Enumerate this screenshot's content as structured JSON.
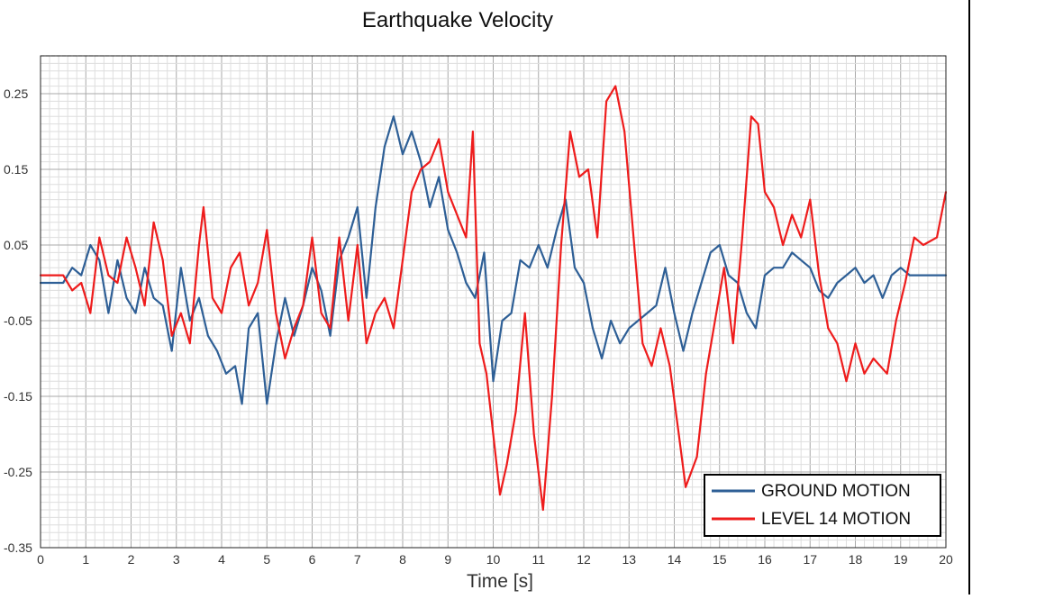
{
  "chart_data": {
    "type": "line",
    "title": "Earthquake Velocity",
    "xlabel": "Time [s]",
    "ylabel": "",
    "xlim": [
      0,
      20
    ],
    "ylim": [
      -0.35,
      0.3
    ],
    "x_ticks": [
      0,
      1,
      2,
      3,
      4,
      5,
      6,
      7,
      8,
      9,
      10,
      11,
      12,
      13,
      14,
      15,
      16,
      17,
      18,
      19,
      20
    ],
    "x_tick_labels": [
      "0",
      "1",
      "2",
      "3",
      "4",
      "5",
      "6",
      "7",
      "8",
      "9",
      "10",
      "11",
      "12",
      "13",
      "14",
      "15",
      "16",
      "17",
      "18",
      "19",
      "20"
    ],
    "y_ticks": [
      0.25,
      0.15,
      0.05,
      -0.05,
      -0.15,
      -0.25,
      -0.35
    ],
    "y_tick_labels": [
      "0.25",
      "0.15",
      "0.05",
      "-0.05",
      "-0.15",
      "-0.25",
      "-0.35"
    ],
    "grid": true,
    "legend_position": "bottom-right",
    "series": [
      {
        "name": "GROUND MOTION",
        "color": "#2e5f96",
        "x": [
          0,
          0.5,
          0.7,
          0.9,
          1.1,
          1.3,
          1.5,
          1.7,
          1.9,
          2.1,
          2.3,
          2.5,
          2.7,
          2.9,
          3.1,
          3.3,
          3.5,
          3.7,
          3.9,
          4.1,
          4.3,
          4.45,
          4.6,
          4.8,
          5.0,
          5.2,
          5.4,
          5.6,
          5.8,
          6.0,
          6.2,
          6.4,
          6.6,
          6.8,
          7.0,
          7.2,
          7.4,
          7.6,
          7.8,
          8.0,
          8.2,
          8.4,
          8.6,
          8.8,
          9.0,
          9.2,
          9.4,
          9.6,
          9.8,
          10.0,
          10.2,
          10.4,
          10.6,
          10.8,
          11.0,
          11.2,
          11.4,
          11.6,
          11.8,
          12.0,
          12.2,
          12.4,
          12.6,
          12.8,
          13.0,
          13.2,
          13.4,
          13.6,
          13.8,
          14.0,
          14.2,
          14.4,
          14.6,
          14.8,
          15.0,
          15.2,
          15.4,
          15.6,
          15.8,
          16.0,
          16.2,
          16.4,
          16.6,
          16.8,
          17.0,
          17.2,
          17.4,
          17.6,
          17.8,
          18.0,
          18.2,
          18.4,
          18.6,
          18.8,
          19.0,
          19.2,
          19.4,
          19.6,
          19.8,
          20.0
        ],
        "y": [
          0.0,
          0.0,
          0.02,
          0.01,
          0.05,
          0.03,
          -0.04,
          0.03,
          -0.02,
          -0.04,
          0.02,
          -0.02,
          -0.03,
          -0.09,
          0.02,
          -0.05,
          -0.02,
          -0.07,
          -0.09,
          -0.12,
          -0.11,
          -0.16,
          -0.06,
          -0.04,
          -0.16,
          -0.08,
          -0.02,
          -0.07,
          -0.03,
          0.02,
          -0.01,
          -0.07,
          0.03,
          0.06,
          0.1,
          -0.02,
          0.1,
          0.18,
          0.22,
          0.17,
          0.2,
          0.16,
          0.1,
          0.14,
          0.07,
          0.04,
          0.0,
          -0.02,
          0.04,
          -0.13,
          -0.05,
          -0.04,
          0.03,
          0.02,
          0.05,
          0.02,
          0.07,
          0.11,
          0.02,
          0.0,
          -0.06,
          -0.1,
          -0.05,
          -0.08,
          -0.06,
          -0.05,
          -0.04,
          -0.03,
          0.02,
          -0.04,
          -0.09,
          -0.04,
          0.0,
          0.04,
          0.05,
          0.01,
          0.0,
          -0.04,
          -0.06,
          0.01,
          0.02,
          0.02,
          0.04,
          0.03,
          0.02,
          -0.01,
          -0.02,
          0.0,
          0.01,
          0.02,
          0.0,
          0.01,
          -0.02,
          0.01,
          0.02,
          0.01,
          0.01,
          0.01,
          0.01,
          0.01
        ]
      },
      {
        "name": "LEVEL 14 MOTION",
        "color": "#ee1c1c",
        "x": [
          0,
          0.5,
          0.7,
          0.9,
          1.1,
          1.3,
          1.5,
          1.7,
          1.9,
          2.1,
          2.3,
          2.5,
          2.7,
          2.9,
          3.1,
          3.3,
          3.5,
          3.6,
          3.8,
          4.0,
          4.2,
          4.4,
          4.6,
          4.8,
          5.0,
          5.2,
          5.4,
          5.6,
          5.8,
          6.0,
          6.2,
          6.4,
          6.6,
          6.8,
          7.0,
          7.2,
          7.4,
          7.6,
          7.8,
          8.0,
          8.2,
          8.4,
          8.6,
          8.8,
          9.0,
          9.2,
          9.4,
          9.55,
          9.7,
          9.85,
          10.0,
          10.15,
          10.3,
          10.5,
          10.7,
          10.9,
          11.1,
          11.3,
          11.5,
          11.7,
          11.9,
          12.1,
          12.3,
          12.5,
          12.7,
          12.9,
          13.1,
          13.3,
          13.5,
          13.7,
          13.9,
          14.1,
          14.25,
          14.5,
          14.7,
          14.9,
          15.1,
          15.3,
          15.5,
          15.7,
          15.85,
          16.0,
          16.2,
          16.4,
          16.6,
          16.8,
          17.0,
          17.2,
          17.4,
          17.6,
          17.8,
          18.0,
          18.2,
          18.4,
          18.7,
          18.9,
          19.1,
          19.3,
          19.5,
          19.8,
          20.0
        ],
        "y": [
          0.01,
          0.01,
          -0.01,
          0.0,
          -0.04,
          0.06,
          0.01,
          0.0,
          0.06,
          0.02,
          -0.03,
          0.08,
          0.03,
          -0.07,
          -0.04,
          -0.08,
          0.05,
          0.1,
          -0.02,
          -0.04,
          0.02,
          0.04,
          -0.03,
          0.0,
          0.07,
          -0.04,
          -0.1,
          -0.06,
          -0.03,
          0.06,
          -0.04,
          -0.06,
          0.06,
          -0.05,
          0.05,
          -0.08,
          -0.04,
          -0.02,
          -0.06,
          0.03,
          0.12,
          0.15,
          0.16,
          0.19,
          0.12,
          0.09,
          0.06,
          0.2,
          -0.08,
          -0.12,
          -0.2,
          -0.28,
          -0.24,
          -0.17,
          -0.04,
          -0.2,
          -0.3,
          -0.15,
          0.05,
          0.2,
          0.14,
          0.15,
          0.06,
          0.24,
          0.26,
          0.2,
          0.06,
          -0.08,
          -0.11,
          -0.06,
          -0.11,
          -0.2,
          -0.27,
          -0.23,
          -0.12,
          -0.05,
          0.02,
          -0.08,
          0.06,
          0.22,
          0.21,
          0.12,
          0.1,
          0.05,
          0.09,
          0.06,
          0.11,
          0.01,
          -0.06,
          -0.08,
          -0.13,
          -0.08,
          -0.12,
          -0.1,
          -0.12,
          -0.05,
          0.0,
          0.06,
          0.05,
          0.06,
          0.12
        ]
      }
    ]
  }
}
